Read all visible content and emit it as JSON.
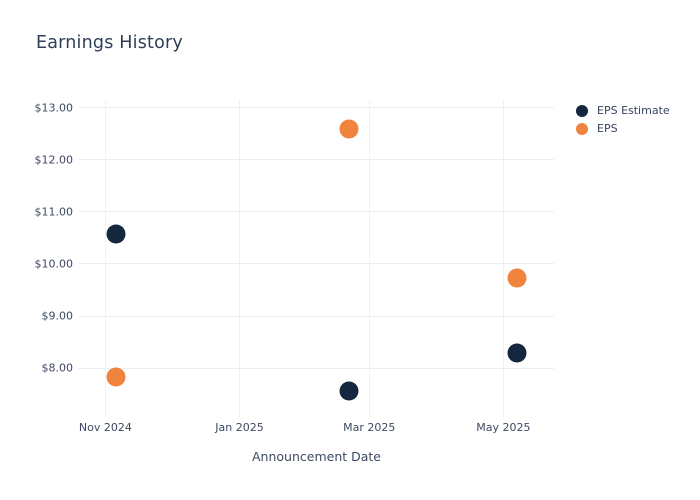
{
  "page": {
    "title": "Earnings History"
  },
  "colors": {
    "background": "#ffffff",
    "title_text": "#2f3e58",
    "axis_text": "#3e4a63",
    "gridline": "#e9edf5",
    "eps_estimate": "#15263f",
    "eps": "#f0843c"
  },
  "chart_data": {
    "type": "scatter",
    "title": "Earnings History",
    "xlabel": "Announcement Date",
    "ylabel": "",
    "grid": true,
    "legend_position": "right",
    "x_ticks": [
      {
        "label": "Nov 2024",
        "date": "2024-11-01"
      },
      {
        "label": "Jan 2025",
        "date": "2025-01-01"
      },
      {
        "label": "Mar 2025",
        "date": "2025-03-01"
      },
      {
        "label": "May 2025",
        "date": "2025-05-01"
      }
    ],
    "y_ticks": [
      {
        "label": "$13.00",
        "value": 13
      },
      {
        "label": "$12.00",
        "value": 12
      },
      {
        "label": "$11.00",
        "value": 11
      },
      {
        "label": "$10.00",
        "value": 10
      },
      {
        "label": "$9.00",
        "value": 9
      },
      {
        "label": "$8.00",
        "value": 8
      }
    ],
    "x_range": [
      "2024-10-20",
      "2025-05-24"
    ],
    "ylim": [
      7.06,
      13.15
    ],
    "series": [
      {
        "name": "EPS Estimate",
        "color": "#15263f",
        "points": [
          {
            "date": "2024-11-06",
            "value": 10.58
          },
          {
            "date": "2025-02-20",
            "value": 7.55
          },
          {
            "date": "2025-05-07",
            "value": 8.28
          }
        ]
      },
      {
        "name": "EPS",
        "color": "#f0843c",
        "points": [
          {
            "date": "2024-11-06",
            "value": 7.83
          },
          {
            "date": "2025-02-20",
            "value": 12.6
          },
          {
            "date": "2025-05-07",
            "value": 9.73
          }
        ]
      }
    ]
  }
}
